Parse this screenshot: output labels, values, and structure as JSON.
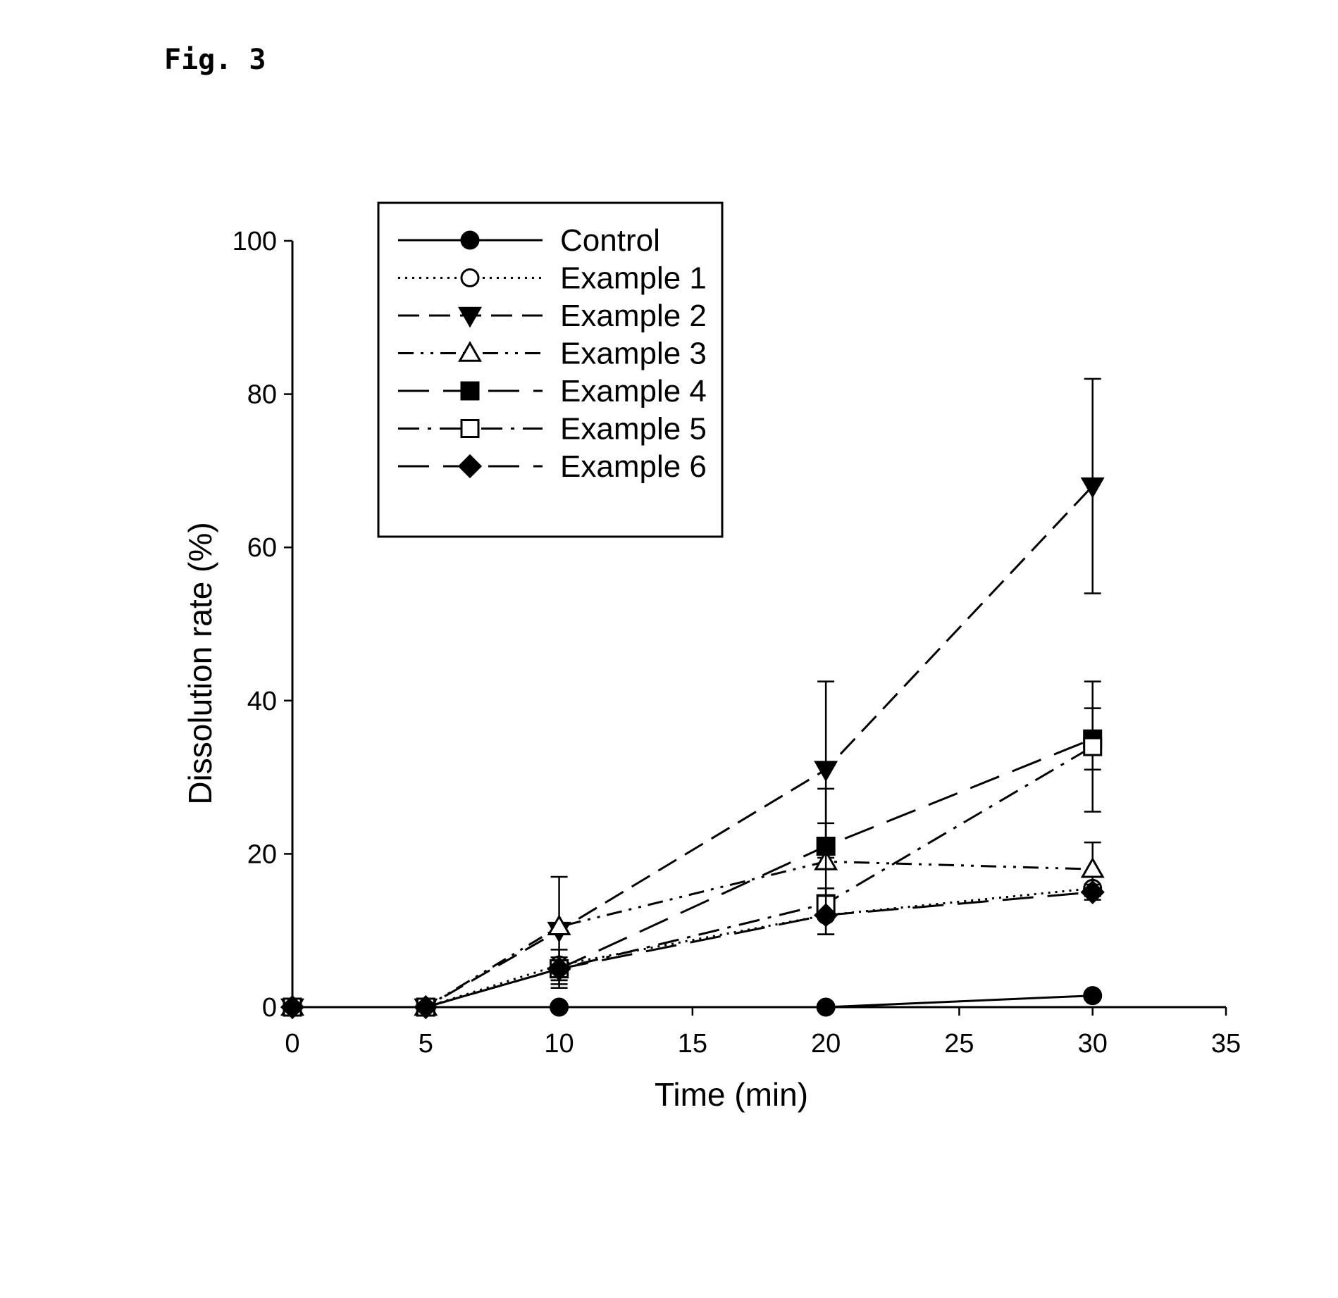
{
  "figure": {
    "title": "Fig. 3"
  },
  "chart_data": {
    "type": "line",
    "xlabel": "Time (min)",
    "ylabel": "Dissolution rate (%)",
    "xlim": [
      0,
      35
    ],
    "ylim": [
      0,
      100
    ],
    "xticks": [
      0,
      5,
      10,
      15,
      20,
      25,
      30,
      35
    ],
    "yticks": [
      0,
      20,
      40,
      60,
      80,
      100
    ],
    "grid": false,
    "legend": "top-left-inside",
    "x": [
      0,
      5,
      10,
      20,
      30
    ],
    "series": [
      {
        "name": "Control",
        "marker": "circle-filled",
        "dash": "solid",
        "values": [
          0,
          0,
          0,
          0,
          1.5
        ]
      },
      {
        "name": "Example 1",
        "marker": "circle-open",
        "dash": "dotted",
        "values": [
          0,
          0,
          5.5,
          12,
          15.5
        ]
      },
      {
        "name": "Example 2",
        "marker": "triangle-down-filled",
        "dash": "dashed",
        "values": [
          0,
          0,
          10,
          31,
          68
        ],
        "error": [
          0,
          0,
          7,
          11.5,
          14
        ]
      },
      {
        "name": "Example 3",
        "marker": "triangle-up-open",
        "dash": "dash-dot-dot",
        "values": [
          0,
          0,
          10.5,
          19,
          18
        ],
        "error": [
          0,
          0,
          0,
          9.5,
          3.5
        ]
      },
      {
        "name": "Example 4",
        "marker": "square-filled",
        "dash": "long-dash",
        "values": [
          0,
          0,
          5,
          21,
          35
        ],
        "error": [
          0,
          0,
          2.5,
          3,
          4
        ]
      },
      {
        "name": "Example 5",
        "marker": "square-open",
        "dash": "dash-dot",
        "values": [
          0,
          0,
          5,
          13.5,
          34
        ],
        "error": [
          0,
          0,
          1.5,
          2,
          8.5
        ]
      },
      {
        "name": "Example 6",
        "marker": "diamond-filled",
        "dash": "long-dash",
        "values": [
          0,
          0,
          5,
          12,
          15
        ],
        "error": [
          0,
          0,
          1.5,
          2.5,
          1
        ]
      }
    ]
  }
}
